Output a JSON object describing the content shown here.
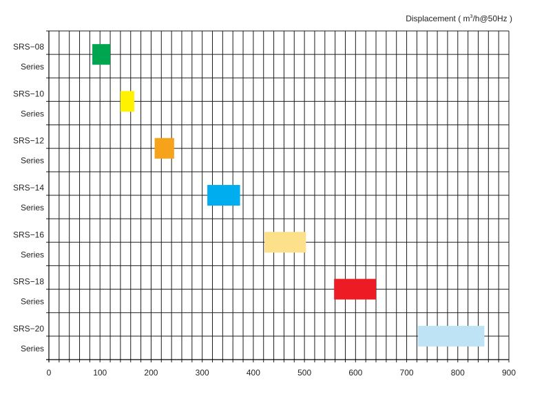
{
  "chart_data": {
    "type": "bar",
    "subtype": "floating-range",
    "title_prefix": "Displacement ( m",
    "title_sup": "3",
    "title_suffix": "/h@50Hz )",
    "xlim": [
      0,
      900
    ],
    "x_ticks": [
      "0",
      "100",
      "200",
      "300",
      "400",
      "500",
      "600",
      "700",
      "800",
      "900"
    ],
    "x_minor_step": 20,
    "categories": [
      {
        "line1": "SRS−08",
        "line2": "Series"
      },
      {
        "line1": "SRS−10",
        "line2": "Series"
      },
      {
        "line1": "SRS−12",
        "line2": "Series"
      },
      {
        "line1": "SRS−14",
        "line2": "Series"
      },
      {
        "line1": "SRS−16",
        "line2": "Series"
      },
      {
        "line1": "SRS−18",
        "line2": "Series"
      },
      {
        "line1": "SRS−20",
        "line2": "Series"
      }
    ],
    "ranges": [
      {
        "series": "SRS-08",
        "start": 85,
        "end": 120,
        "color": "#00a550"
      },
      {
        "series": "SRS-10",
        "start": 140,
        "end": 167,
        "color": "#fff200"
      },
      {
        "series": "SRS-12",
        "start": 207,
        "end": 245,
        "color": "#f7a21b"
      },
      {
        "series": "SRS-14",
        "start": 310,
        "end": 374,
        "color": "#00aeef"
      },
      {
        "series": "SRS-16",
        "start": 422,
        "end": 503,
        "color": "#fde08a"
      },
      {
        "series": "SRS-18",
        "start": 558,
        "end": 640,
        "color": "#ed1c24"
      },
      {
        "series": "SRS-20",
        "start": 722,
        "end": 852,
        "color": "#bde3f4"
      }
    ],
    "grid": true
  }
}
